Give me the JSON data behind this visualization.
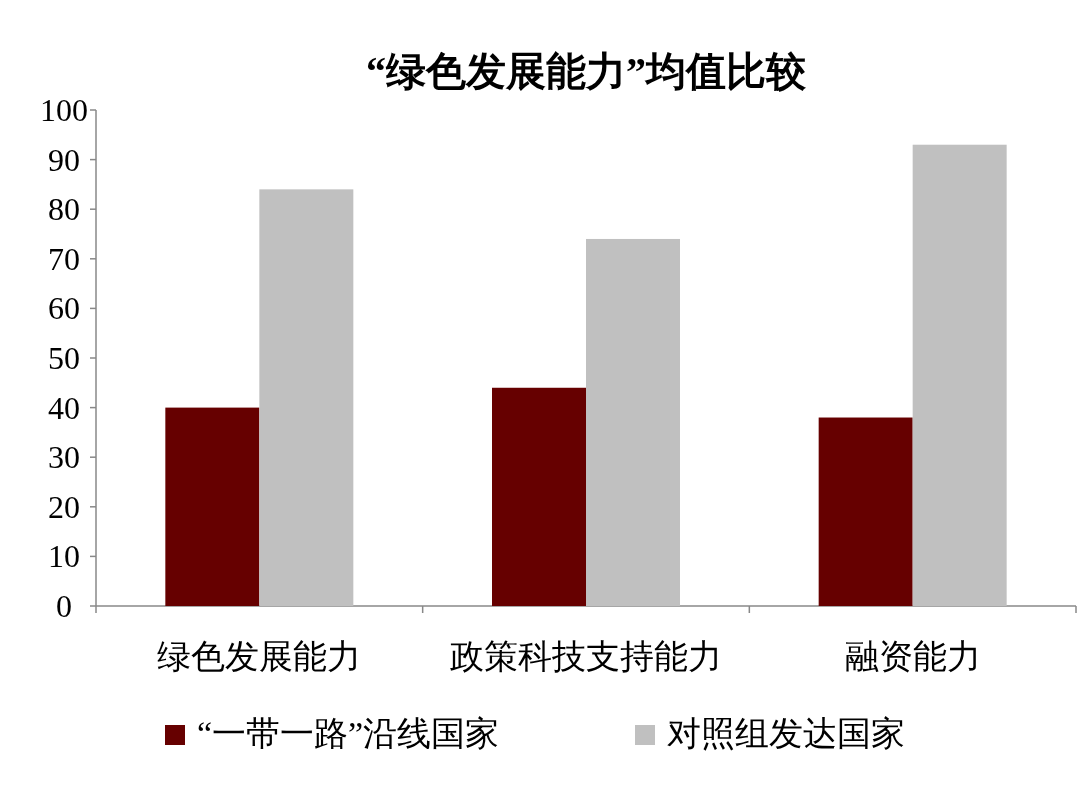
{
  "chart_data": {
    "type": "bar",
    "title": "“绿色发展能力”均值比较",
    "categories": [
      "绿色发展能力",
      "政策科技支持能力",
      "融资能力"
    ],
    "series": [
      {
        "name": "“一带一路”沿线国家",
        "color": "#660000",
        "values": [
          40,
          44,
          38
        ]
      },
      {
        "name": "对照组发达国家",
        "color": "#c0c0c0",
        "values": [
          84,
          74,
          93
        ]
      }
    ],
    "ylim": [
      0,
      100
    ],
    "yticks": [
      0,
      10,
      20,
      30,
      40,
      50,
      60,
      70,
      80,
      90,
      100
    ],
    "legend": "bottom"
  }
}
